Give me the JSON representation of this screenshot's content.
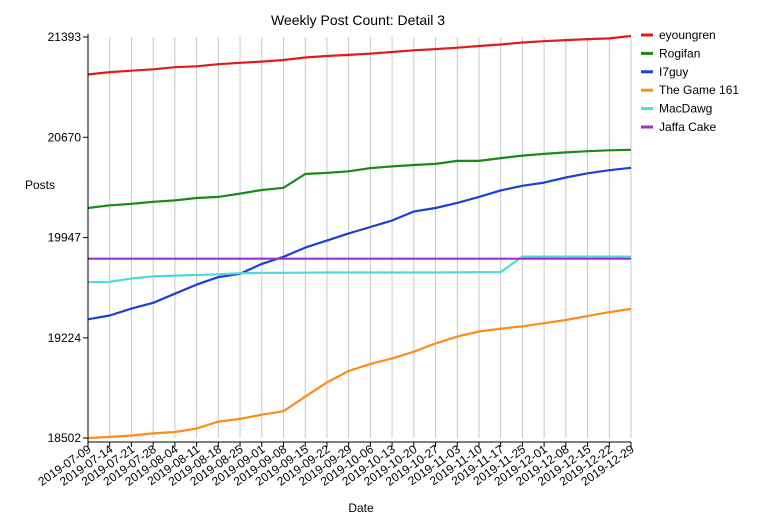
{
  "chart_data": {
    "type": "line",
    "title": "Weekly Post Count: Detail 3",
    "xlabel": "Date",
    "ylabel": "Posts",
    "ylim": [
      18502,
      21393
    ],
    "yticks": [
      18502,
      19224,
      19947,
      20670,
      21393
    ],
    "grid": "vertical",
    "legend": "top-right",
    "x": [
      "2019-07-09",
      "2019-07-14",
      "2019-07-21",
      "2019-07-28",
      "2019-08-04",
      "2019-08-11",
      "2019-08-18",
      "2019-08-25",
      "2019-09-01",
      "2019-09-08",
      "2019-09-15",
      "2019-09-22",
      "2019-09-29",
      "2019-10-06",
      "2019-10-13",
      "2019-10-20",
      "2019-10-27",
      "2019-11-03",
      "2019-11-10",
      "2019-11-17",
      "2019-11-25",
      "2019-12-01",
      "2019-12-08",
      "2019-12-15",
      "2019-12-22",
      "2019-12-29"
    ],
    "series": [
      {
        "name": "eyoungren",
        "color": "#e31a1c",
        "values": [
          21123,
          21140,
          21150,
          21160,
          21175,
          21182,
          21197,
          21207,
          21216,
          21227,
          21245,
          21256,
          21264,
          21273,
          21285,
          21297,
          21306,
          21316,
          21328,
          21339,
          21353,
          21363,
          21371,
          21378,
          21383,
          21400
        ]
      },
      {
        "name": "Rogifan",
        "color": "#1a8a1a",
        "values": [
          20160,
          20180,
          20190,
          20205,
          20215,
          20232,
          20240,
          20264,
          20290,
          20306,
          20405,
          20413,
          20425,
          20448,
          20460,
          20470,
          20478,
          20500,
          20500,
          20520,
          20538,
          20550,
          20561,
          20570,
          20576,
          20580
        ]
      },
      {
        "name": "I7guy",
        "color": "#1f3fd6",
        "values": [
          19358,
          19385,
          19435,
          19477,
          19542,
          19608,
          19662,
          19686,
          19757,
          19808,
          19875,
          19925,
          19977,
          20023,
          20070,
          20135,
          20160,
          20197,
          20240,
          20287,
          20320,
          20343,
          20380,
          20410,
          20433,
          20450
        ]
      },
      {
        "name": "The Game 161",
        "color": "#ff8c1a",
        "values": [
          18502,
          18510,
          18520,
          18535,
          18545,
          18570,
          18620,
          18640,
          18670,
          18695,
          18800,
          18903,
          18985,
          19036,
          19076,
          19124,
          19184,
          19233,
          19270,
          19290,
          19307,
          19330,
          19353,
          19381,
          19410,
          19433
        ]
      },
      {
        "name": "MacDawg",
        "color": "#4fd8e0",
        "values": [
          19625,
          19628,
          19652,
          19667,
          19673,
          19677,
          19682,
          19690,
          19692,
          19693,
          19694,
          19695,
          19695,
          19695,
          19695,
          19695,
          19695,
          19696,
          19697,
          19698,
          19810,
          19810,
          19810,
          19810,
          19810,
          19810
        ]
      },
      {
        "name": "Jaffa Cake",
        "color": "#9f2fd0",
        "values": [
          19795,
          19795,
          19795,
          19795,
          19795,
          19795,
          19795,
          19795,
          19795,
          19795,
          19795,
          19795,
          19795,
          19795,
          19795,
          19795,
          19795,
          19795,
          19795,
          19795,
          19795,
          19795,
          19795,
          19795,
          19795,
          19795
        ]
      }
    ]
  }
}
